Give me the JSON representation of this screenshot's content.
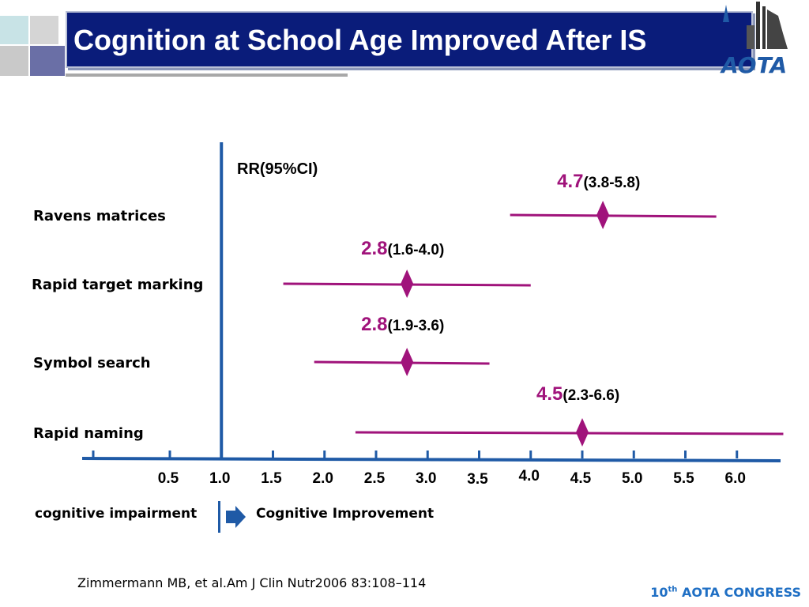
{
  "title": "Cognition at School Age Improved  After IS",
  "colors": {
    "title_bg": "#0a1c7a",
    "axis": "#1f5aa6",
    "series": "#a0137b",
    "value": "#a0137b",
    "congress": "#1f6fc4"
  },
  "logo": {
    "icon": "aota-logo-icon",
    "text": "AOTA"
  },
  "chart_data": {
    "type": "forest",
    "header": "RR(95%CI)",
    "reference_line": 1.0,
    "x_ticks": [
      "0.5",
      "1.0",
      "1.5",
      "2.0",
      "2.5",
      "3.0",
      "3.5",
      "4.0",
      "4.5",
      "5.0",
      "5.5",
      "6.0"
    ],
    "x_tick_values": [
      0.5,
      1.0,
      1.5,
      2.0,
      2.5,
      3.0,
      3.5,
      4.0,
      4.5,
      5.0,
      5.5,
      6.0
    ],
    "rows": [
      {
        "label": "Ravens matrices",
        "rr": 4.7,
        "ci_low": 3.8,
        "ci_high": 5.8,
        "rr_text": "4.7",
        "ci_text": "(3.8-5.8)"
      },
      {
        "label": "Rapid target marking",
        "rr": 2.8,
        "ci_low": 1.6,
        "ci_high": 4.0,
        "rr_text": "2.8",
        "ci_text": "(1.6-4.0)"
      },
      {
        "label": "Symbol search",
        "rr": 2.8,
        "ci_low": 1.9,
        "ci_high": 3.6,
        "rr_text": "2.8",
        "ci_text": "(1.9-3.6)"
      },
      {
        "label": "Rapid naming",
        "rr": 4.5,
        "ci_low": 2.3,
        "ci_high": 6.6,
        "rr_text": "4.5",
        "ci_text": "(2.3-6.6)"
      }
    ]
  },
  "footer": {
    "left_label": "cognitive impairment",
    "right_label": "Cognitive Improvement",
    "arrow_icon": "right-arrow-icon"
  },
  "citation": "Zimmermann MB, et al.Am J Clin Nutr2006 83:108–114",
  "congress": {
    "number": "10",
    "suffix": "th",
    "name": "AOTA CONGRESS"
  }
}
